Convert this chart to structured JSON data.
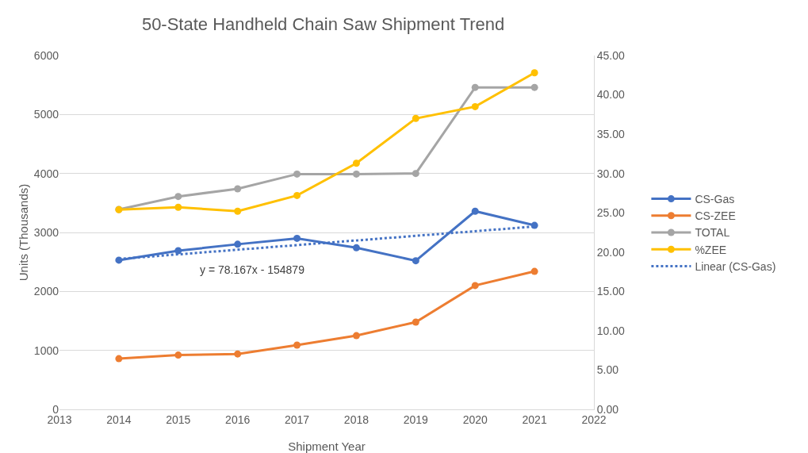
{
  "chart_data": {
    "type": "line",
    "title": "50-State Handheld Chain Saw Shipment Trend",
    "xlabel": "Shipment Year",
    "ylabel": "Units (Thousands)",
    "x": [
      2014,
      2015,
      2016,
      2017,
      2018,
      2019,
      2020,
      2021
    ],
    "series": [
      {
        "name": "CS-Gas",
        "color": "#4472c4",
        "values": [
          2530,
          2690,
          2800,
          2900,
          2740,
          2520,
          3360,
          3120
        ]
      },
      {
        "name": "CS-ZEE",
        "color": "#ed7d31",
        "values": [
          860,
          920,
          940,
          1090,
          1250,
          1480,
          2100,
          2340
        ]
      },
      {
        "name": "TOTAL",
        "color": "#a5a5a5",
        "values": [
          3390,
          3610,
          3740,
          3990,
          3990,
          4000,
          5460,
          5460
        ]
      },
      {
        "name": "%ZEE",
        "color": "#ffc000",
        "axis": "y2",
        "values": [
          25.4,
          25.7,
          25.2,
          27.2,
          31.3,
          37.0,
          38.5,
          42.8
        ]
      },
      {
        "name": "Linear (CS-Gas)",
        "color": "#4472c4",
        "x": [
          2014,
          2021
        ],
        "values": [
          2550,
          3100
        ],
        "line_style": "dotted",
        "marker": "none"
      }
    ],
    "annotations": [
      "y = 78.167x - 154879"
    ],
    "xlim": [
      2013,
      2022
    ],
    "xticks": [
      2013,
      2014,
      2015,
      2016,
      2017,
      2018,
      2019,
      2020,
      2021,
      2022
    ],
    "ylim": [
      0,
      6000
    ],
    "yticks": [
      0,
      1000,
      2000,
      3000,
      4000,
      5000,
      6000
    ],
    "y2lim": [
      0,
      45
    ],
    "y2ticks": [
      {
        "value": 0,
        "label": "0.00"
      },
      {
        "value": 5,
        "label": "5.00"
      },
      {
        "value": 10,
        "label": "10.00"
      },
      {
        "value": 15,
        "label": "15.00"
      },
      {
        "value": 20,
        "label": "20.00"
      },
      {
        "value": 25,
        "label": "25.00"
      },
      {
        "value": 30,
        "label": "30.00"
      },
      {
        "value": 35,
        "label": "35.00"
      },
      {
        "value": 40,
        "label": "40.00"
      },
      {
        "value": 45,
        "label": "45.00"
      }
    ],
    "grid": "y",
    "legend": "right",
    "marker": "circle",
    "line_style": "solid"
  }
}
